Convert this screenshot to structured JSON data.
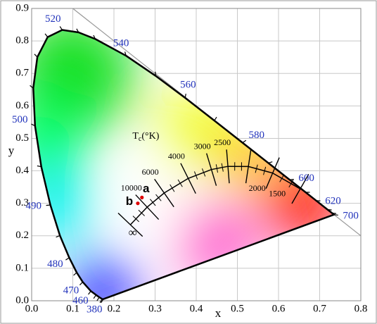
{
  "chart_data": {
    "type": "chromaticity",
    "x_label": "x",
    "y_label": "y",
    "xlim": [
      0,
      0.8
    ],
    "ylim": [
      0,
      0.9
    ],
    "xticks": [
      {
        "value": 0,
        "label": "0.0"
      },
      0.1,
      0.2,
      0.3,
      0.4,
      0.5,
      0.6,
      0.7,
      0.8
    ],
    "yticks": [
      {
        "value": 0,
        "label": "0.0"
      },
      0.1,
      0.2,
      0.3,
      0.4,
      0.5,
      0.6,
      0.7,
      0.8,
      0.9
    ],
    "grid": true,
    "spectral_locus": {
      "labels": [
        380,
        null,
        null,
        null,
        460,
        470,
        null,
        480,
        null,
        490,
        null,
        500,
        null,
        null,
        null,
        520,
        null,
        null,
        540,
        null,
        560,
        null,
        580,
        null,
        600,
        null,
        620,
        null,
        null,
        700
      ],
      "x": [
        0.1741,
        0.1714,
        0.1644,
        0.1566,
        0.144,
        0.1241,
        0.1096,
        0.0913,
        0.0687,
        0.0454,
        0.0235,
        0.0082,
        0.0039,
        0.0139,
        0.0389,
        0.0743,
        0.1142,
        0.1547,
        0.2296,
        0.3016,
        0.3731,
        0.4441,
        0.5125,
        0.5752,
        0.627,
        0.6658,
        0.6915,
        0.719,
        0.73,
        0.7347
      ],
      "y": [
        0.005,
        0.0051,
        0.0109,
        0.0177,
        0.0297,
        0.0578,
        0.0868,
        0.1327,
        0.2007,
        0.295,
        0.4127,
        0.5384,
        0.6548,
        0.7502,
        0.812,
        0.8338,
        0.8262,
        0.8059,
        0.7543,
        0.6923,
        0.6245,
        0.5547,
        0.4866,
        0.4242,
        0.3725,
        0.334,
        0.3083,
        0.2809,
        0.27,
        0.2653
      ],
      "label_color": "#2233bb"
    },
    "planckian_locus": {
      "title": {
        "symbol": "T",
        "subscript": "c",
        "unit": "(°K)"
      },
      "labels": [
        null,
        "1500",
        "2000",
        "2500",
        "3000",
        "4000",
        "6000",
        "10000",
        "∞"
      ],
      "x": [
        0.6528,
        0.5857,
        0.5267,
        0.477,
        0.4369,
        0.3805,
        0.3221,
        0.2807,
        0.2399
      ],
      "y": [
        0.3444,
        0.3931,
        0.4133,
        0.4137,
        0.4041,
        0.3768,
        0.3318,
        0.2883,
        0.2341
      ]
    },
    "points": {
      "names": [
        "a",
        "b"
      ],
      "x": [
        0.268,
        0.258
      ],
      "y": [
        0.318,
        0.3
      ],
      "color": "#dd0000"
    }
  }
}
